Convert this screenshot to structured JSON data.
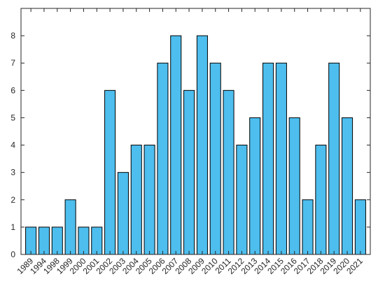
{
  "chart_data": {
    "type": "bar",
    "categories": [
      "1989",
      "1994",
      "1998",
      "1999",
      "2000",
      "2001",
      "2002",
      "2003",
      "2004",
      "2005",
      "2006",
      "2007",
      "2008",
      "2009",
      "2010",
      "2011",
      "2012",
      "2013",
      "2014",
      "2015",
      "2016",
      "2017",
      "2018",
      "2019",
      "2020",
      "2021"
    ],
    "values": [
      1,
      1,
      1,
      2,
      1,
      1,
      6,
      3,
      4,
      4,
      7,
      8,
      6,
      8,
      7,
      6,
      4,
      5,
      7,
      7,
      5,
      2,
      4,
      7,
      5,
      2
    ],
    "title": "",
    "xlabel": "",
    "ylabel": "",
    "ylim": [
      0,
      9
    ],
    "yticks": [
      0,
      1,
      2,
      3,
      4,
      5,
      6,
      7,
      8
    ],
    "grid": false,
    "bar_color": "#4DBEEE",
    "edge_color": "#000000"
  }
}
